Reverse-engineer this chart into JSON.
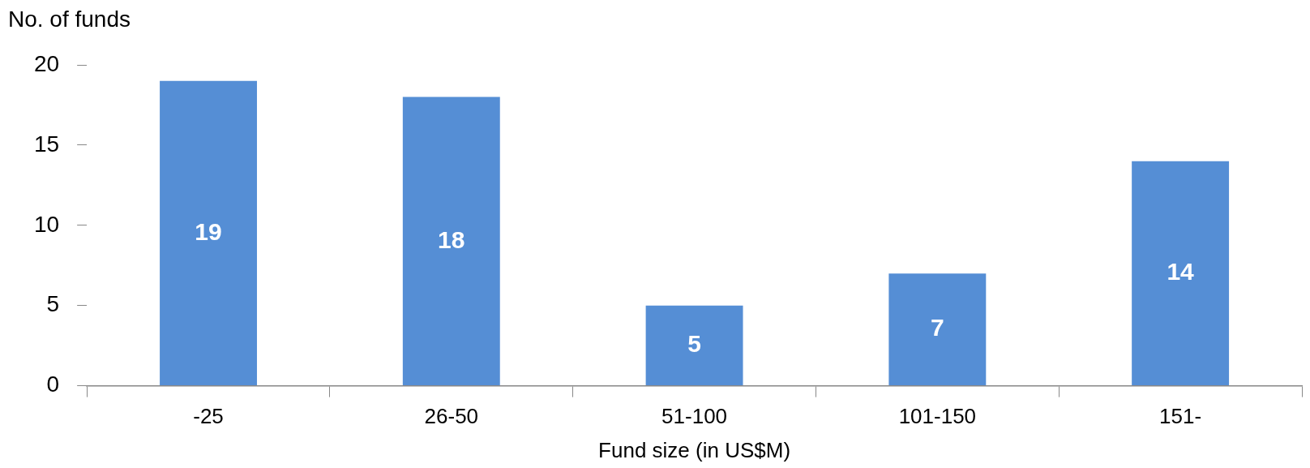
{
  "chart_data": {
    "type": "bar",
    "xlabel": "Fund size (in US$M)",
    "ylabel": "No. of funds",
    "categories": [
      "-25",
      "26-50",
      "51-100",
      "101-150",
      "151-"
    ],
    "values": [
      19,
      18,
      5,
      7,
      14
    ],
    "color": "#558ed5",
    "ylim": [
      0,
      20
    ],
    "yticks": [
      0,
      5,
      10,
      15,
      20
    ],
    "grid": false,
    "legend": false,
    "data_labels": true
  }
}
